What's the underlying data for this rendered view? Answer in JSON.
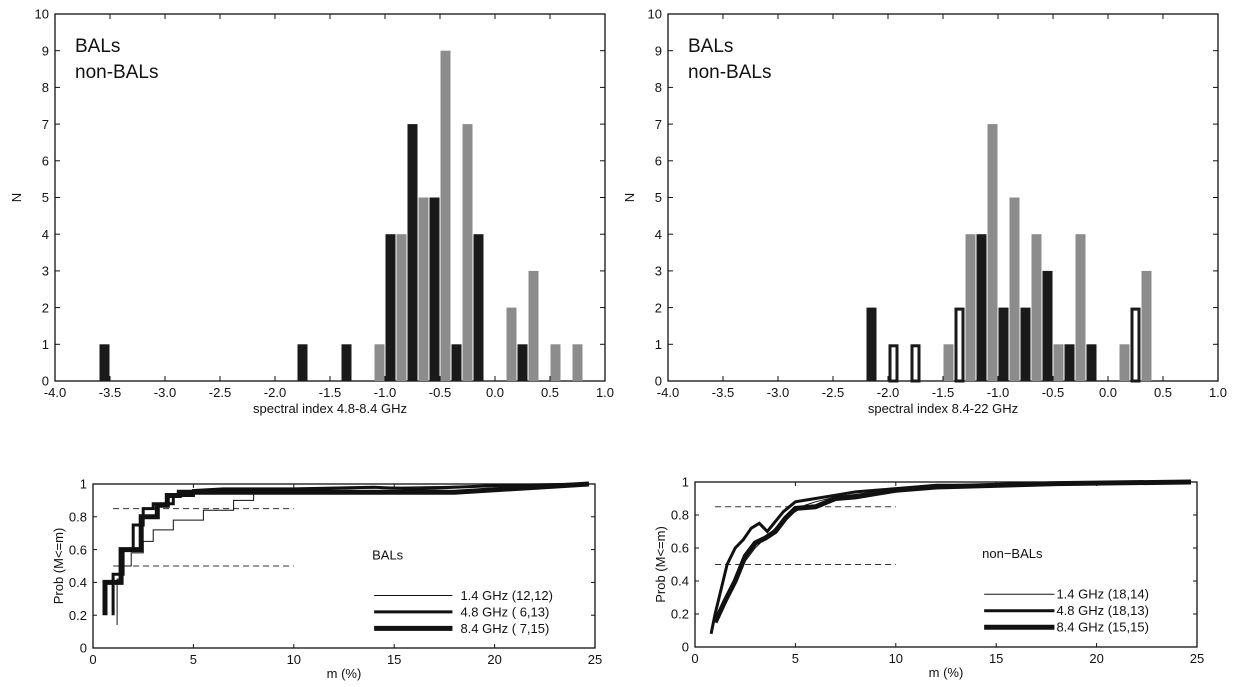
{
  "chart_data": [
    {
      "type": "bar",
      "xlabel": "spectral index 4.8-8.4 GHz",
      "ylabel": "N",
      "xlim": [
        -4.0,
        1.0
      ],
      "ylim": [
        0,
        10
      ],
      "x_ticks": [
        "-4.0",
        "-3.5",
        "-3.0",
        "-2.5",
        "-2.0",
        "-1.5",
        "-1.0",
        "-0.5",
        "0.0",
        "0.5",
        "1.0"
      ],
      "y_ticks": [
        "0",
        "1",
        "2",
        "3",
        "4",
        "5",
        "6",
        "7",
        "8",
        "9",
        "10"
      ],
      "legend": [
        "BALs",
        "non-BALs"
      ],
      "legend_position": "top-left",
      "colors": {
        "BALs": "#1a1a1a",
        "non-BALs": "#8c8c8c"
      },
      "series": [
        {
          "name": "BALs",
          "style": "solid",
          "x": [
            -3.55,
            -1.75,
            -1.35,
            -0.95,
            -0.75,
            -0.55,
            -0.35,
            -0.15,
            0.25
          ],
          "values": [
            1,
            1,
            1,
            4,
            7,
            5,
            1,
            4,
            1
          ]
        },
        {
          "name": "non-BALs",
          "style": "solid",
          "x": [
            -1.05,
            -0.85,
            -0.65,
            -0.45,
            -0.25,
            0.15,
            0.35,
            0.55,
            0.75
          ],
          "values": [
            1,
            4,
            5,
            9,
            7,
            2,
            3,
            1,
            1
          ]
        }
      ]
    },
    {
      "type": "bar",
      "xlabel": "spectral index 8.4-22 GHz",
      "ylabel": "N",
      "xlim": [
        -4.0,
        1.0
      ],
      "ylim": [
        0,
        10
      ],
      "x_ticks": [
        "-4.0",
        "-3.5",
        "-3.0",
        "-2.5",
        "-2.0",
        "-1.5",
        "-1.0",
        "-0.5",
        "0.0",
        "0.5",
        "1.0"
      ],
      "y_ticks": [
        "0",
        "1",
        "2",
        "3",
        "4",
        "5",
        "6",
        "7",
        "8",
        "9",
        "10"
      ],
      "legend": [
        "BALs",
        "non-BALs"
      ],
      "legend_position": "top-left",
      "colors": {
        "BALs": "#1a1a1a",
        "non-BALs": "#8c8c8c"
      },
      "series": [
        {
          "name": "BALs",
          "style": "solid",
          "x": [
            -2.15,
            -1.35,
            -1.15,
            -0.95,
            -0.75,
            -0.55,
            -0.35,
            -0.15,
            0.25
          ],
          "values": [
            2,
            1,
            4,
            2,
            2,
            3,
            1,
            1,
            1
          ]
        },
        {
          "name": "BALs",
          "style": "hollow",
          "x": [
            -1.95,
            -1.75,
            -1.35,
            0.25
          ],
          "values": [
            1,
            1,
            2,
            2
          ]
        },
        {
          "name": "non-BALs",
          "style": "solid",
          "x": [
            -1.45,
            -1.25,
            -1.05,
            -0.85,
            -0.65,
            -0.45,
            -0.25,
            0.15,
            0.35
          ],
          "values": [
            1,
            4,
            7,
            5,
            4,
            1,
            4,
            1,
            3
          ]
        }
      ]
    },
    {
      "type": "line",
      "xlabel": "m (%)",
      "ylabel": "Prob (M<=m)",
      "xlim": [
        0,
        25
      ],
      "ylim": [
        0,
        1
      ],
      "x_ticks": [
        "0",
        "5",
        "10",
        "15",
        "20",
        "25"
      ],
      "y_ticks": [
        "0",
        "0.2",
        "0.4",
        "0.6",
        "0.8",
        "1"
      ],
      "annotation": "BALs",
      "reference_lines": [
        {
          "y": 0.85,
          "x": [
            1,
            10
          ]
        },
        {
          "y": 0.5,
          "x": [
            1,
            10
          ]
        }
      ],
      "legend_position": "right",
      "series": [
        {
          "name": "1.4 GHz (12,12)",
          "width": "thin",
          "x": [
            1.2,
            1.2,
            1.4,
            1.4,
            1.9,
            1.9,
            2.5,
            2.5,
            3.0,
            3.0,
            4.0,
            4.0,
            5.5,
            5.5,
            7.0,
            7.0,
            8.0,
            8.0,
            10,
            15,
            20,
            24.7
          ],
          "y": [
            0.14,
            0.42,
            0.42,
            0.5,
            0.5,
            0.58,
            0.58,
            0.65,
            0.65,
            0.72,
            0.72,
            0.78,
            0.78,
            0.84,
            0.84,
            0.9,
            0.9,
            0.95,
            0.96,
            0.98,
            0.99,
            1.0
          ]
        },
        {
          "name": "4.8 GHz ( 6,13)",
          "width": "medium",
          "x": [
            1.0,
            1.0,
            1.5,
            1.5,
            2.0,
            2.0,
            2.5,
            2.5,
            3.0,
            3.0,
            4.0,
            4.0,
            5.0,
            5.0,
            6.5,
            10,
            14,
            16,
            18,
            20,
            24.7
          ],
          "y": [
            0.2,
            0.45,
            0.45,
            0.6,
            0.6,
            0.75,
            0.75,
            0.85,
            0.85,
            0.88,
            0.88,
            0.93,
            0.93,
            0.96,
            0.97,
            0.97,
            0.98,
            0.97,
            0.98,
            0.99,
            1.0
          ]
        },
        {
          "name": "8.4 GHz ( 7,15)",
          "width": "thick",
          "x": [
            0.6,
            0.6,
            1.4,
            1.4,
            2.4,
            2.4,
            3.2,
            3.2,
            3.7,
            3.7,
            4.3,
            4.3,
            6.0,
            10,
            18,
            24.7
          ],
          "y": [
            0.2,
            0.4,
            0.4,
            0.6,
            0.6,
            0.8,
            0.8,
            0.87,
            0.87,
            0.93,
            0.93,
            0.95,
            0.95,
            0.95,
            0.95,
            1.0
          ]
        }
      ]
    },
    {
      "type": "line",
      "xlabel": "m (%)",
      "ylabel": "Prob (M<=m)",
      "xlim": [
        0,
        25
      ],
      "ylim": [
        0,
        1
      ],
      "x_ticks": [
        "0",
        "5",
        "10",
        "15",
        "20",
        "25"
      ],
      "y_ticks": [
        "0",
        "0.2",
        "0.4",
        "0.6",
        "0.8",
        "1"
      ],
      "annotation": "non−BALs",
      "reference_lines": [
        {
          "y": 0.85,
          "x": [
            1,
            10
          ]
        },
        {
          "y": 0.5,
          "x": [
            1,
            10
          ]
        }
      ],
      "legend_position": "right",
      "series": [
        {
          "name": "1.4 GHz (18,14)",
          "width": "thin",
          "x": [
            1.2,
            1.6,
            2.0,
            2.5,
            3.0,
            3.5,
            4.0,
            4.5,
            5.0,
            5.5,
            6.0,
            7.0,
            9.0,
            12,
            18,
            24.7
          ],
          "y": [
            0.18,
            0.3,
            0.4,
            0.52,
            0.6,
            0.66,
            0.72,
            0.78,
            0.82,
            0.86,
            0.88,
            0.91,
            0.94,
            0.97,
            0.99,
            1.0
          ]
        },
        {
          "name": "4.8 GHz (18,13)",
          "width": "medium",
          "x": [
            0.8,
            1.0,
            1.3,
            1.6,
            2.0,
            2.4,
            2.8,
            3.2,
            3.6,
            4.0,
            4.4,
            5.0,
            6.0,
            7.0,
            8.0,
            9.0,
            10,
            11,
            12,
            15,
            20,
            24.7
          ],
          "y": [
            0.08,
            0.2,
            0.35,
            0.5,
            0.6,
            0.65,
            0.72,
            0.75,
            0.7,
            0.76,
            0.82,
            0.88,
            0.9,
            0.92,
            0.94,
            0.95,
            0.96,
            0.97,
            0.98,
            0.98,
            0.99,
            1.0
          ]
        },
        {
          "name": "8.4 GHz (15,15)",
          "width": "thick",
          "x": [
            1.0,
            1.5,
            2.0,
            2.5,
            3.0,
            3.5,
            4.0,
            4.5,
            5.0,
            6.0,
            7.0,
            8.0,
            9.0,
            10,
            12,
            18,
            24.7
          ],
          "y": [
            0.15,
            0.28,
            0.4,
            0.55,
            0.63,
            0.66,
            0.7,
            0.78,
            0.84,
            0.85,
            0.9,
            0.91,
            0.93,
            0.95,
            0.97,
            0.99,
            1.0
          ]
        }
      ]
    }
  ]
}
